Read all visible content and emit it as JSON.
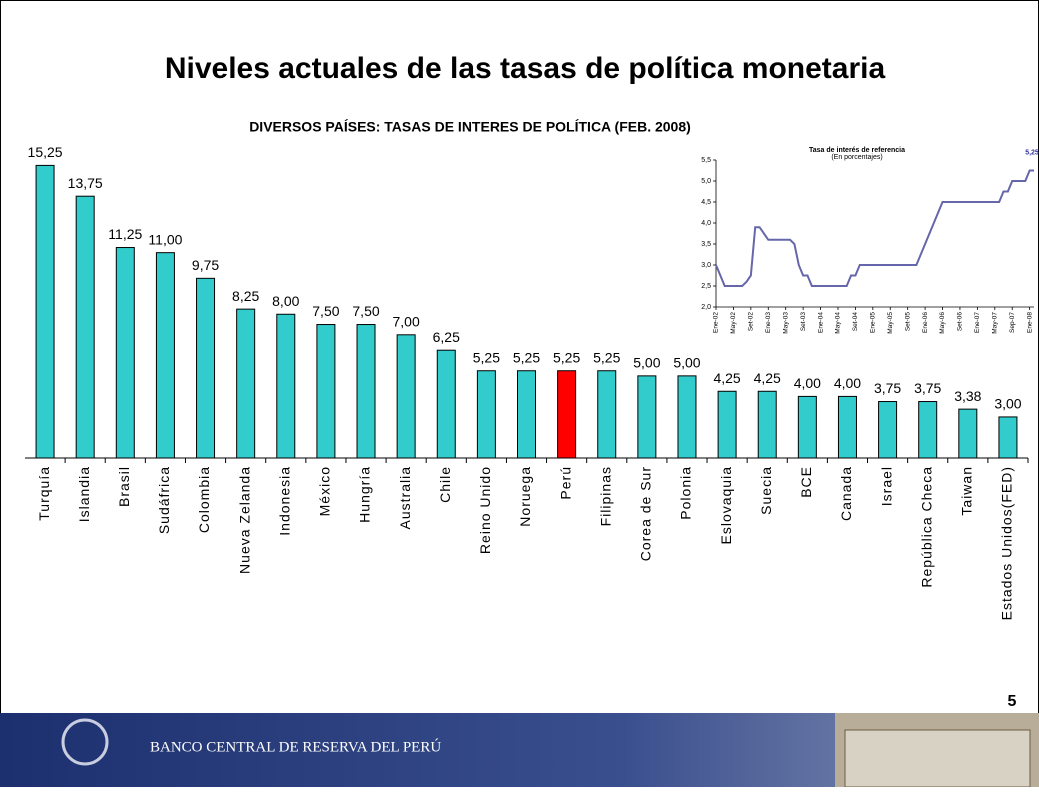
{
  "slide": {
    "title": "Niveles actuales de las tasas de política monetaria",
    "page_number": "5",
    "footer_text": "BANCO CENTRAL DE RESERVA DEL PERÚ"
  },
  "chart_data": [
    {
      "type": "bar",
      "title": "DIVERSOS PAÍSES: TASAS DE INTERES DE POLÍTICA (FEB. 2008)",
      "categories": [
        "Turquía",
        "Islandia",
        "Brasil",
        "Sudáfrica",
        "Colombia",
        "Nueva Zelanda",
        "Indonesia",
        "México",
        "Hungría",
        "Australia",
        "Chile",
        "Reino Unido",
        "Noruega",
        "Perú",
        "Filipinas",
        "Corea de Sur",
        "Polonia",
        "Eslovaquia",
        "Suecia",
        "BCE",
        "Canada",
        "Israel",
        "República Checa",
        "Taiwan",
        "Estados Unidos(FED)"
      ],
      "values": [
        15.25,
        13.75,
        11.25,
        11.0,
        9.75,
        8.25,
        8.0,
        7.5,
        7.5,
        7.0,
        6.25,
        5.25,
        5.25,
        5.25,
        5.25,
        5.0,
        5.0,
        4.25,
        4.25,
        4.0,
        4.0,
        3.75,
        3.75,
        3.38,
        3.0
      ],
      "value_labels": [
        "15,25",
        "13,75",
        "11,25",
        "11,00",
        "9,75",
        "8,25",
        "8,00",
        "7,50",
        "7,50",
        "7,00",
        "6,25",
        "5,25",
        "5,25",
        "5,25",
        "5,25",
        "5,00",
        "5,00",
        "4,25",
        "4,25",
        "4,00",
        "4,00",
        "3,75",
        "3,75",
        "3,38",
        "3,00"
      ],
      "colors": [
        "#33cccc",
        "#33cccc",
        "#33cccc",
        "#33cccc",
        "#33cccc",
        "#33cccc",
        "#33cccc",
        "#33cccc",
        "#33cccc",
        "#33cccc",
        "#33cccc",
        "#33cccc",
        "#33cccc",
        "#ff0000",
        "#33cccc",
        "#33cccc",
        "#33cccc",
        "#33cccc",
        "#33cccc",
        "#33cccc",
        "#33cccc",
        "#33cccc",
        "#33cccc",
        "#33cccc",
        "#33cccc"
      ],
      "ylim": [
        1,
        16
      ]
    },
    {
      "type": "line",
      "title": "Tasa de interés de referencia",
      "subtitle": "(En porcentajes)",
      "categories": [
        "Ene-02",
        null,
        null,
        null,
        "May-02",
        null,
        null,
        null,
        "Set-02",
        null,
        null,
        null,
        "Ene-03",
        null,
        null,
        null,
        "May-03",
        null,
        null,
        null,
        "Set-03",
        null,
        null,
        null,
        "Ene-04",
        null,
        null,
        null,
        "May-04",
        null,
        null,
        null,
        "Set-04",
        null,
        null,
        null,
        "Ene-05",
        null,
        null,
        null,
        "May-05",
        null,
        null,
        null,
        "Set-05",
        null,
        null,
        null,
        "Ene-06",
        null,
        null,
        null,
        "May-06",
        null,
        null,
        null,
        "Set-06",
        null,
        null,
        null,
        "Ene-07",
        null,
        null,
        null,
        "May-07",
        null,
        null,
        null,
        "Sep-07",
        null,
        null,
        null,
        "Ene-08",
        null
      ],
      "values": [
        3.0,
        2.75,
        2.5,
        2.5,
        2.5,
        2.5,
        2.5,
        2.6,
        2.75,
        3.9,
        3.9,
        3.75,
        3.6,
        3.6,
        3.6,
        3.6,
        3.6,
        3.6,
        3.5,
        3.0,
        2.75,
        2.75,
        2.5,
        2.5,
        2.5,
        2.5,
        2.5,
        2.5,
        2.5,
        2.5,
        2.5,
        2.75,
        2.75,
        3.0,
        3.0,
        3.0,
        3.0,
        3.0,
        3.0,
        3.0,
        3.0,
        3.0,
        3.0,
        3.0,
        3.0,
        3.0,
        3.0,
        3.25,
        3.5,
        3.75,
        4.0,
        4.25,
        4.5,
        4.5,
        4.5,
        4.5,
        4.5,
        4.5,
        4.5,
        4.5,
        4.5,
        4.5,
        4.5,
        4.5,
        4.5,
        4.5,
        4.75,
        4.75,
        5.0,
        5.0,
        5.0,
        5.0,
        5.25,
        5.25
      ],
      "color": "#6666aa",
      "last_value_label": "5,25",
      "ylim": [
        2.0,
        5.5
      ],
      "yticks": [
        {
          "value": 2.0,
          "label": "2,0"
        },
        {
          "value": 2.5,
          "label": "2,5"
        },
        {
          "value": 3.0,
          "label": "3,0"
        },
        {
          "value": 3.5,
          "label": "3,5"
        },
        {
          "value": 4.0,
          "label": "4,0"
        },
        {
          "value": 4.5,
          "label": "4,5"
        },
        {
          "value": 5.0,
          "label": "5,0"
        },
        {
          "value": 5.5,
          "label": "5,5"
        }
      ]
    }
  ]
}
